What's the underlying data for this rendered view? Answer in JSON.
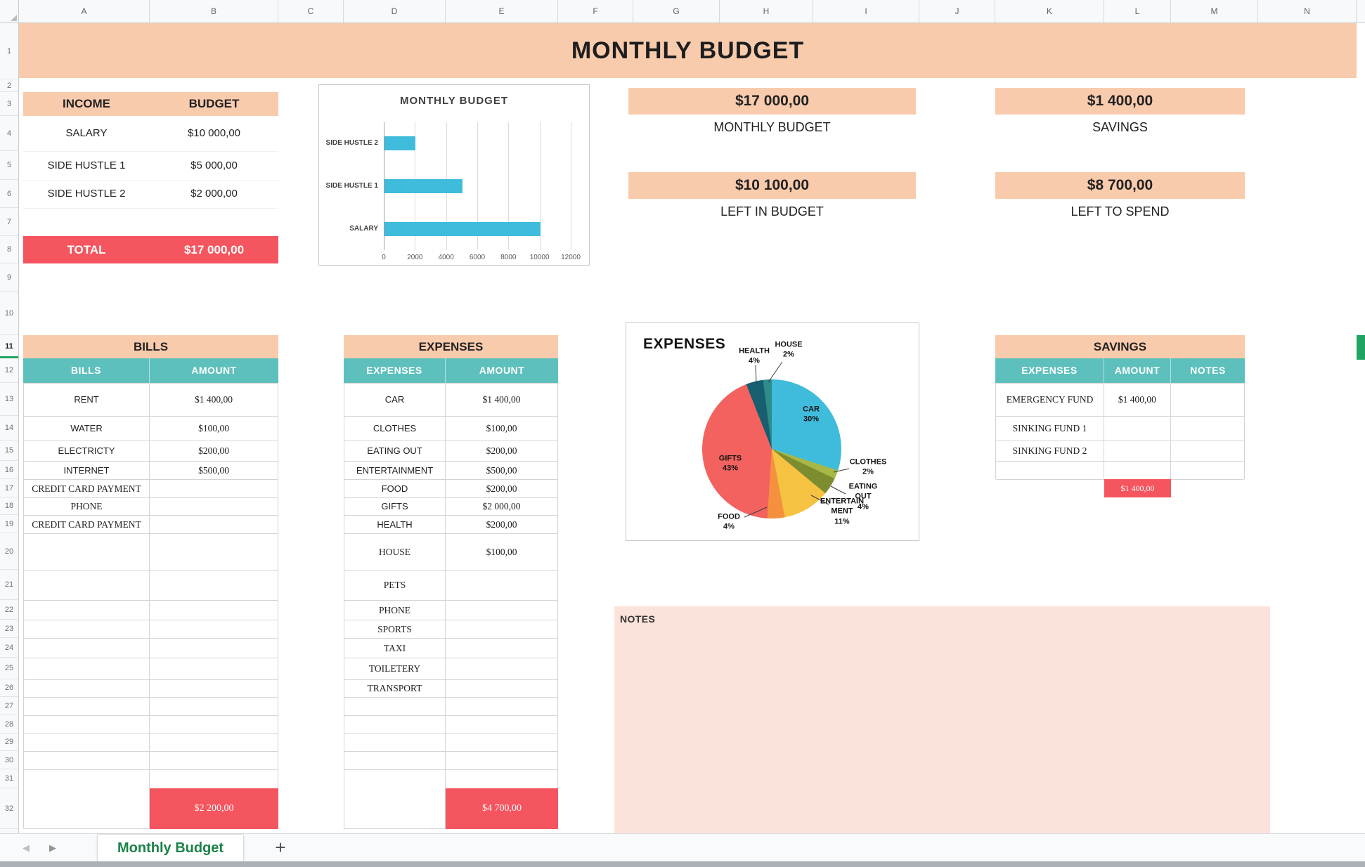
{
  "colors": {
    "peach": "#F9CBAD",
    "red": "#F4555E",
    "teal": "#5EC0BC",
    "notes_bg": "#FBE3DC",
    "bar_blue": "#3FBCDB",
    "tab_green": "#1A8248",
    "selection_green": "#21A463"
  },
  "spreadsheet": {
    "columns": [
      "A",
      "B",
      "C",
      "D",
      "E",
      "F",
      "G",
      "H",
      "I",
      "J",
      "K",
      "L",
      "M",
      "N"
    ],
    "row_count": 32,
    "selected_row": 11
  },
  "banner": {
    "title": "MONTHLY BUDGET"
  },
  "income": {
    "header": [
      "INCOME",
      "BUDGET"
    ],
    "rows": [
      {
        "label": "SALARY",
        "amount": "$10 000,00"
      },
      {
        "label": "SIDE HUSTLE 1",
        "amount": "$5 000,00"
      },
      {
        "label": "SIDE HUSTLE 2",
        "amount": "$2 000,00"
      }
    ],
    "total_label": "TOTAL",
    "total_amount": "$17 000,00"
  },
  "summary_boxes": [
    {
      "amount": "$17 000,00",
      "label": "MONTHLY BUDGET"
    },
    {
      "amount": "$10 100,00",
      "label": "LEFT IN BUDGET"
    },
    {
      "amount": "$1 400,00",
      "label": "SAVINGS"
    },
    {
      "amount": "$8 700,00",
      "label": "LEFT TO SPEND"
    }
  ],
  "bills": {
    "title": "BILLS",
    "headers": [
      "BILLS",
      "AMOUNT"
    ],
    "rows": [
      {
        "label": "RENT",
        "amount": "$1 400,00"
      },
      {
        "label": "WATER",
        "amount": "$100,00"
      },
      {
        "label": "ELECTRICTY",
        "amount": "$200,00"
      },
      {
        "label": "INTERNET",
        "amount": "$500,00"
      },
      {
        "label": "CREDIT CARD PAYMENT",
        "amount": ""
      },
      {
        "label": "PHONE",
        "amount": ""
      },
      {
        "label": "CREDIT CARD PAYMENT",
        "amount": ""
      }
    ],
    "empty_row_count": 12,
    "total_amount": "$2 200,00"
  },
  "expenses_table": {
    "title": "EXPENSES",
    "headers": [
      "EXPENSES",
      "AMOUNT"
    ],
    "rows": [
      {
        "label": "CAR",
        "amount": "$1 400,00"
      },
      {
        "label": "CLOTHES",
        "amount": "$100,00"
      },
      {
        "label": "EATING OUT",
        "amount": "$200,00"
      },
      {
        "label": "ENTERTAINMENT",
        "amount": "$500,00"
      },
      {
        "label": "FOOD",
        "amount": "$200,00"
      },
      {
        "label": "GIFTS",
        "amount": "$2 000,00"
      },
      {
        "label": "HEALTH",
        "amount": "$200,00"
      },
      {
        "label": "HOUSE",
        "amount": "$100,00"
      },
      {
        "label": "PETS",
        "amount": ""
      },
      {
        "label": "PHONE",
        "amount": ""
      },
      {
        "label": "SPORTS",
        "amount": ""
      },
      {
        "label": "TAXI",
        "amount": ""
      },
      {
        "label": "TOILETERY",
        "amount": ""
      },
      {
        "label": "TRANSPORT",
        "amount": ""
      }
    ],
    "empty_row_count": 5,
    "total_amount": "$4 700,00"
  },
  "savings_table": {
    "title": "SAVINGS",
    "headers": [
      "EXPENSES",
      "AMOUNT",
      "NOTES"
    ],
    "rows": [
      {
        "label": "EMERGENCY FUND",
        "amount": "$1 400,00",
        "notes": ""
      },
      {
        "label": "SINKING FUND 1",
        "amount": "",
        "notes": ""
      },
      {
        "label": "SINKING FUND 2",
        "amount": "",
        "notes": ""
      }
    ],
    "empty_row_count": 1,
    "total_amount": "$1 400,00"
  },
  "notes": {
    "label": "NOTES"
  },
  "tab_bar": {
    "tabs": [
      {
        "label": "Monthly Budget",
        "active": true
      }
    ],
    "add_button": "+"
  },
  "chart_data": [
    {
      "type": "bar",
      "title": "MONTHLY BUDGET",
      "orientation": "horizontal",
      "categories": [
        "SIDE HUSTLE 2",
        "SIDE HUSTLE 1",
        "SALARY"
      ],
      "values": [
        2000,
        5000,
        10000
      ],
      "xlabel": "",
      "ylabel": "",
      "xlim": [
        0,
        12000
      ],
      "xticks": [
        0,
        2000,
        4000,
        6000,
        8000,
        10000,
        12000
      ],
      "grid": true,
      "legend": false,
      "bar_color": "#3FBCDB"
    },
    {
      "type": "pie",
      "title": "EXPENSES",
      "labels": [
        "CAR",
        "CLOTHES",
        "EATING OUT",
        "ENTERTAINMENT",
        "FOOD",
        "GIFTS",
        "HEALTH",
        "HOUSE"
      ],
      "values": [
        30,
        2,
        4,
        11,
        4,
        43,
        4,
        2
      ],
      "unit": "percent",
      "start_angle_deg": 0,
      "direction": "clockwise",
      "colors": [
        "#3FBCDB",
        "#A9B744",
        "#7D8C2F",
        "#F5C242",
        "#F5913E",
        "#F3625F",
        "#175F70",
        "#2E8C8A"
      ]
    }
  ]
}
